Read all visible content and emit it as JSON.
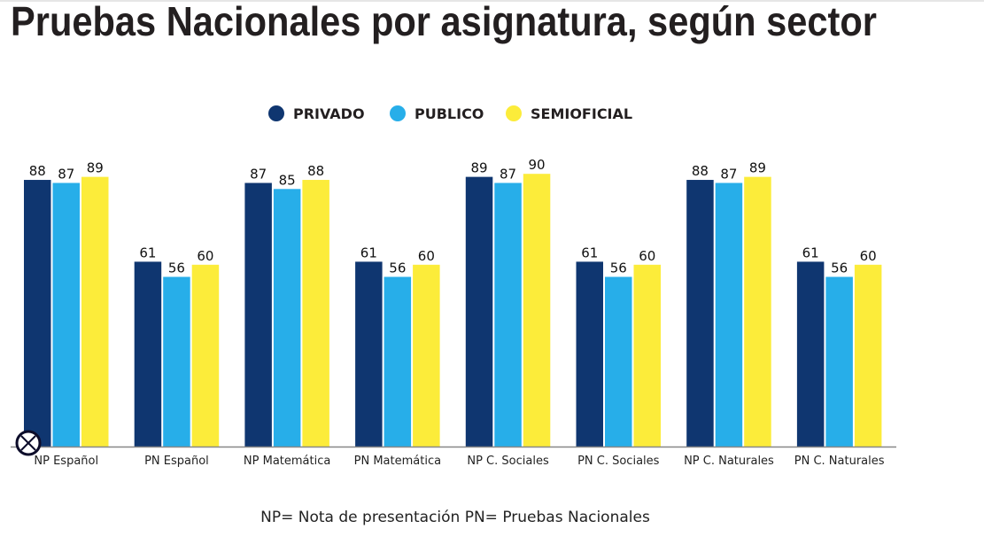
{
  "chart_data": {
    "type": "bar",
    "title": "Pruebas Nacionales por asignatura, según sector",
    "categories": [
      "NP Español",
      "PN Español",
      "NP Matemática",
      "PN Matemática",
      "NP C. Sociales",
      "PN C. Sociales",
      "NP C. Naturales",
      "PN C. Naturales"
    ],
    "series": [
      {
        "name": "PRIVADO",
        "color": "#0f3670",
        "values": [
          88,
          61,
          87,
          61,
          89,
          61,
          88,
          61
        ]
      },
      {
        "name": "PUBLICO",
        "color": "#27aee9",
        "values": [
          87,
          56,
          85,
          56,
          87,
          56,
          87,
          56
        ]
      },
      {
        "name": "SEMIOFICIAL",
        "color": "#fcec3a",
        "values": [
          89,
          60,
          88,
          60,
          90,
          60,
          89,
          60
        ]
      }
    ],
    "ylim": [
      0,
      100
    ],
    "grid": false,
    "legend": "top-center",
    "data_labels": true,
    "footnote": "NP= Nota de presentación  PN= Pruebas Nacionales"
  },
  "icons": {
    "corner": "circle-x-icon"
  }
}
